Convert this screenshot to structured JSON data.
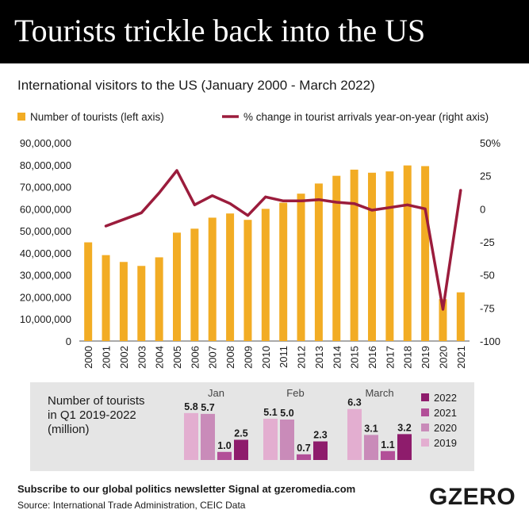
{
  "header": {
    "title": "Tourists trickle back into the US"
  },
  "subtitle": "International visitors to the US (January 2000 - March 2022)",
  "footer": {
    "subscribe": "Subscribe to our global politics newsletter Signal at gzeromedia.com",
    "source": "Source: International Trade Administration, CEIC Data",
    "logo": "GZERO"
  },
  "colors": {
    "bar": "#f2ac24",
    "line": "#9b1c3c",
    "y2022": "#8e1c6c",
    "y2021": "#b24f98",
    "y2020": "#c98bb9",
    "y2019": "#e3aed0",
    "inset_bg": "#e5e5e5"
  },
  "chart_data": [
    {
      "type": "bar+line",
      "legend": [
        {
          "label": "Number of tourists (left axis)",
          "kind": "bar"
        },
        {
          "label": "% change in tourist arrivals year-on-year (right axis)",
          "kind": "line"
        }
      ],
      "legend_placement": "top",
      "categories": [
        "2000",
        "2001",
        "2002",
        "2003",
        "2004",
        "2005",
        "2006",
        "2007",
        "2008",
        "2009",
        "2010",
        "2011",
        "2012",
        "2013",
        "2014",
        "2015",
        "2016",
        "2017",
        "2018",
        "2019",
        "2020",
        "2021"
      ],
      "bars": [
        44800000,
        39000000,
        35900000,
        34100000,
        38000000,
        49200000,
        51000000,
        56000000,
        57900000,
        55000000,
        60000000,
        62800000,
        66900000,
        71500000,
        75000000,
        77800000,
        76400000,
        77000000,
        79700000,
        79400000,
        19000000,
        22100000
      ],
      "line": [
        null,
        -13,
        -8,
        -3,
        12,
        29,
        3,
        10,
        4,
        -5,
        9,
        6,
        6,
        7,
        5,
        4,
        -1,
        1,
        3,
        0,
        -76,
        14
      ],
      "y_left": {
        "min": 0,
        "max": 90000000,
        "ticks": [
          "0",
          "10,000,000",
          "20,000,000",
          "30,000,000",
          "40,000,000",
          "50,000,000",
          "60,000,000",
          "70,000,000",
          "80,000,000",
          "90,000,000"
        ]
      },
      "y_right": {
        "min": -100,
        "max": 50,
        "ticks": [
          "-100",
          "-75",
          "-50",
          "-25",
          "0",
          "25",
          "50%"
        ]
      },
      "grid": false
    },
    {
      "type": "bar",
      "title": [
        "Number of tourists",
        "in Q1 2019-2022",
        "(million)"
      ],
      "groups": [
        "Jan",
        "Feb",
        "March"
      ],
      "series": [
        {
          "name": "2019",
          "values": [
            5.8,
            5.1,
            6.3
          ]
        },
        {
          "name": "2020",
          "values": [
            5.7,
            5.0,
            3.1
          ]
        },
        {
          "name": "2021",
          "values": [
            1.0,
            0.7,
            1.1
          ]
        },
        {
          "name": "2022",
          "values": [
            2.5,
            2.3,
            3.2
          ]
        }
      ],
      "value_labels": [
        [
          "5.8",
          "5.7",
          "1.0",
          "2.5"
        ],
        [
          "5.1",
          "5.0",
          "0.7",
          "2.3"
        ],
        [
          "6.3",
          "3.1",
          "1.1",
          "3.2"
        ]
      ],
      "legend": [
        "2022",
        "2021",
        "2020",
        "2019"
      ],
      "legend_placement": "right"
    }
  ]
}
